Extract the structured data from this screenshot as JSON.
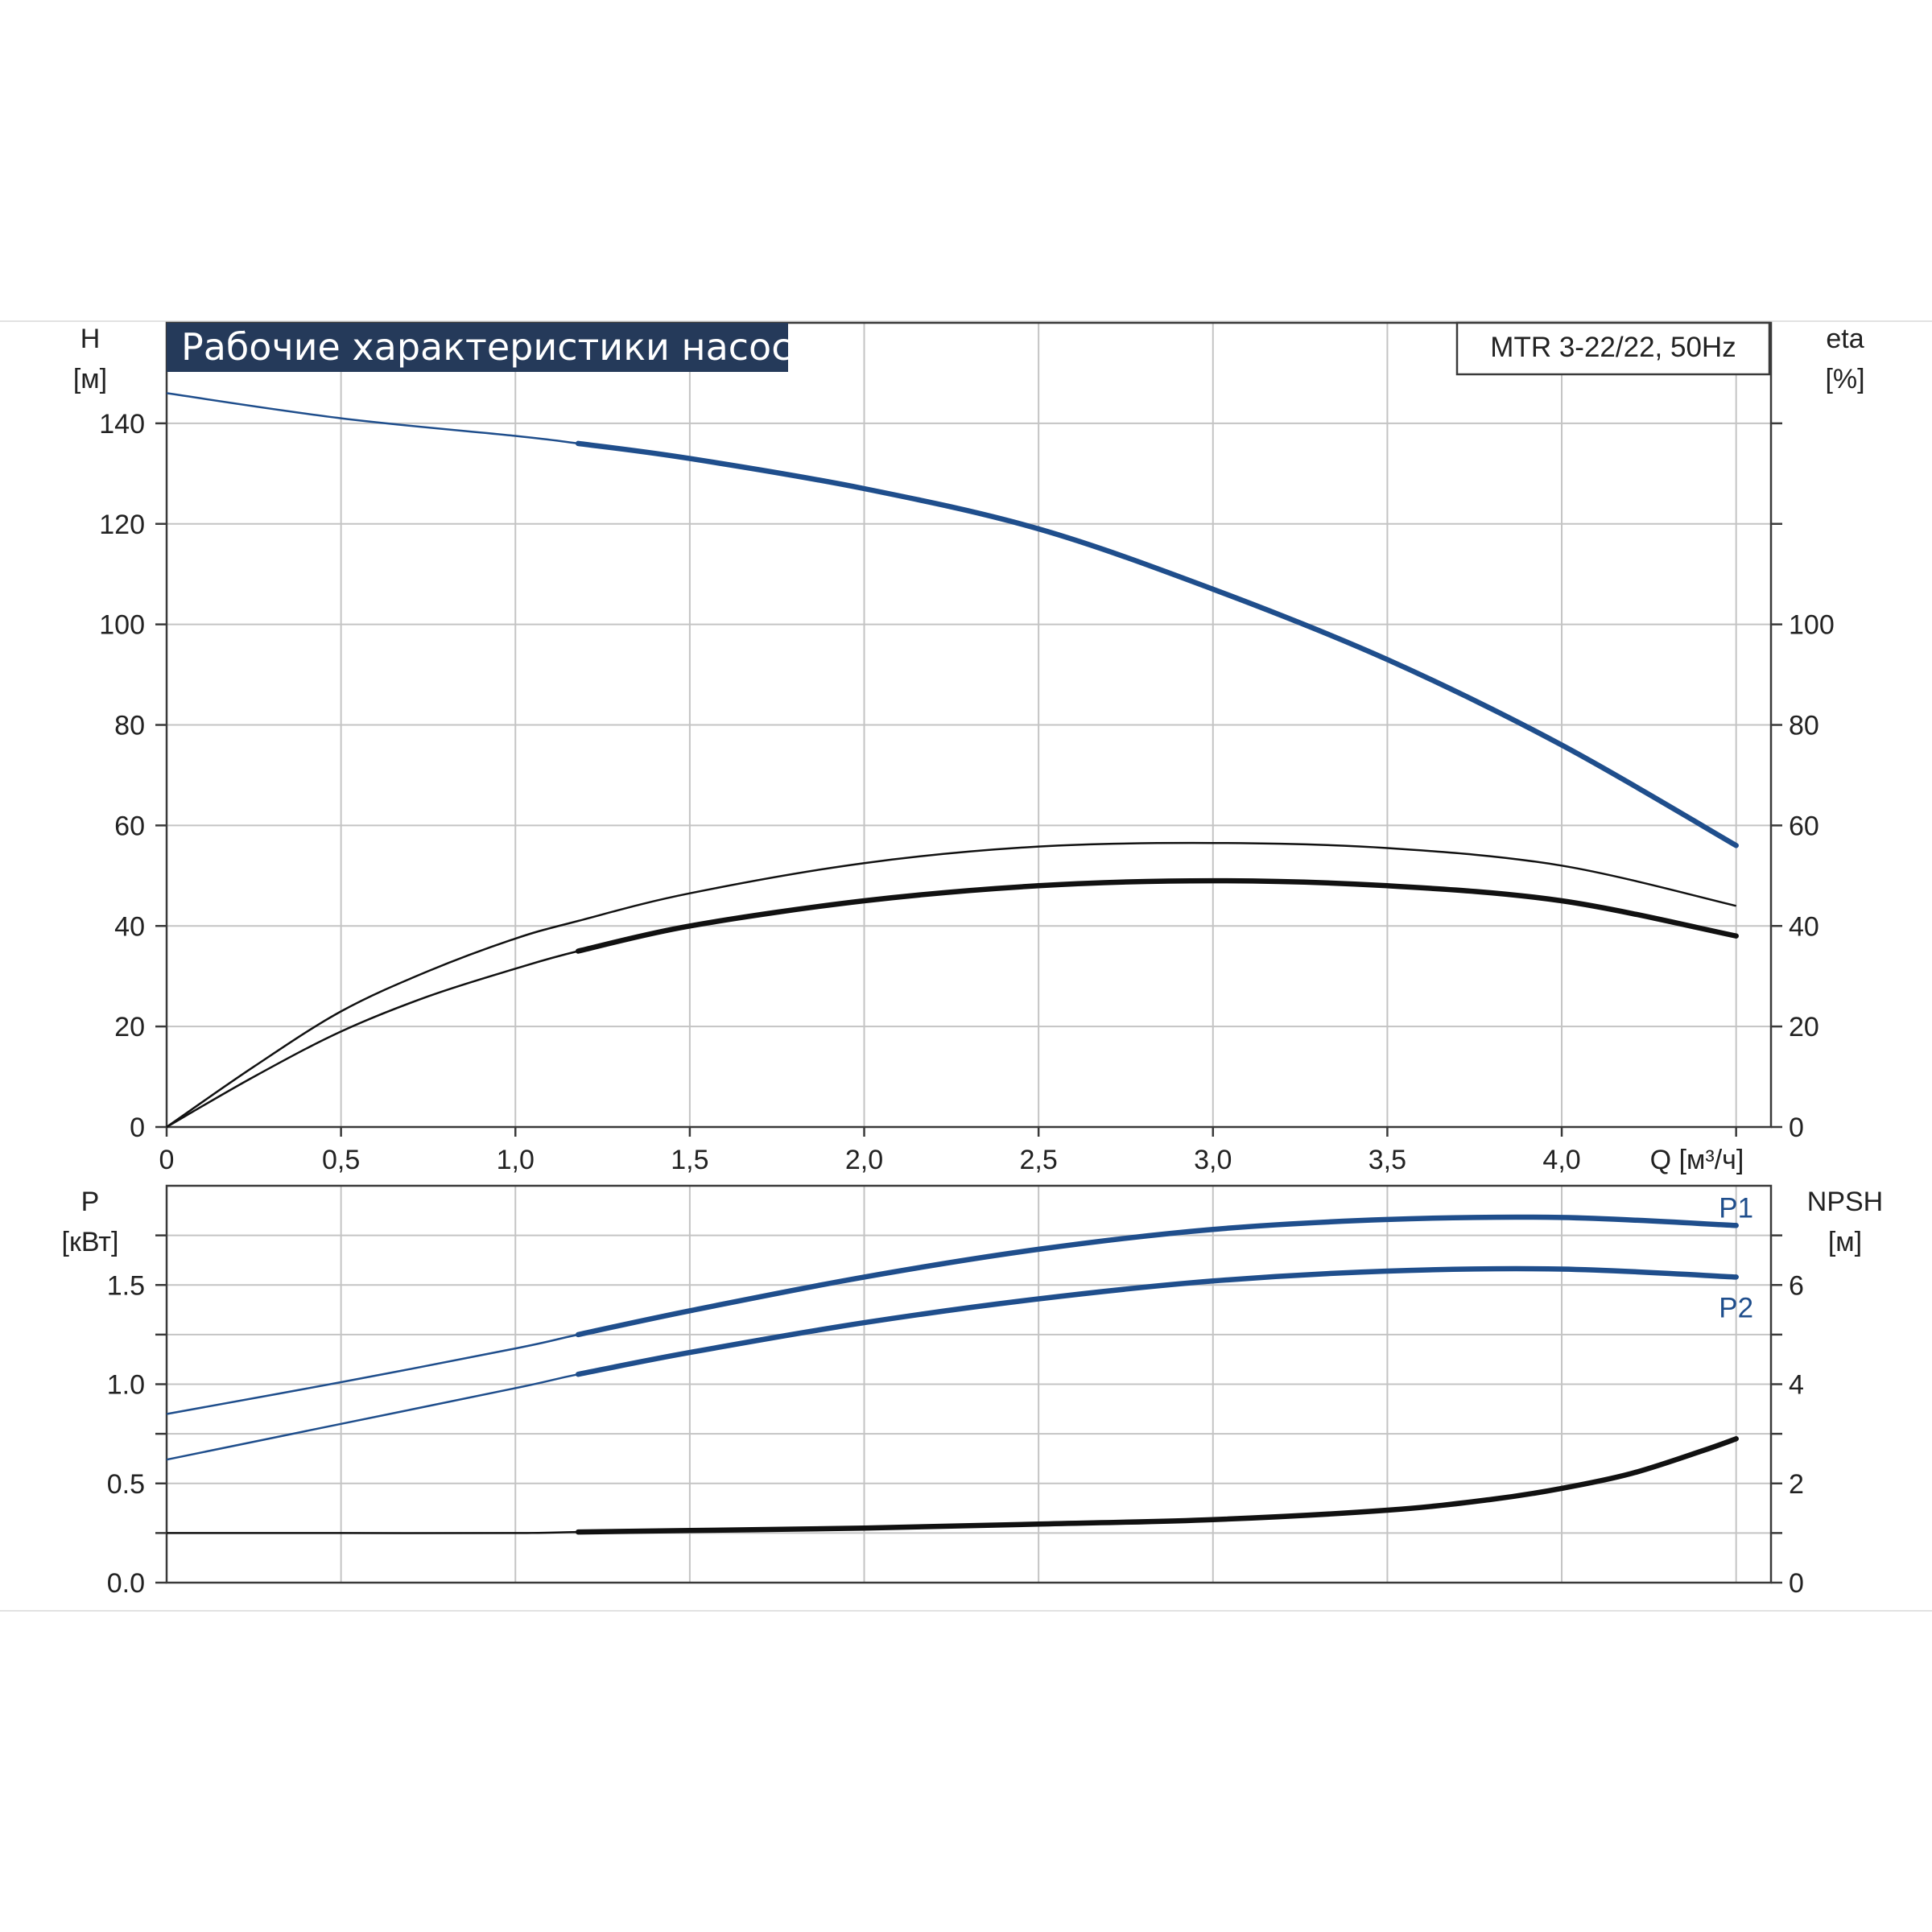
{
  "chart_data": [
    {
      "type": "line",
      "title": "Рабочие характеристики насоса",
      "model": "MTR 3-22/22, 50Hz",
      "xlabel": "Q [м³/ч]",
      "xlim": [
        0,
        4.6
      ],
      "x_ticks": [
        "0",
        "0,5",
        "1,0",
        "1,5",
        "2,0",
        "2,5",
        "3,0",
        "3,5",
        "4,0"
      ],
      "ylabel_left": [
        "H",
        "[м]"
      ],
      "ylim_left": [
        0,
        160
      ],
      "y_ticks_left": [
        "0",
        "20",
        "40",
        "60",
        "80",
        "100",
        "120",
        "140"
      ],
      "ylabel_right": [
        "eta",
        "[%]"
      ],
      "ylim_right": [
        0,
        160
      ],
      "y_ticks_right": [
        "0",
        "20",
        "40",
        "60",
        "80",
        "100"
      ],
      "grid": true,
      "series": [
        {
          "axis": "left",
          "color": "#1f4e8c",
          "work_from": 1.18,
          "x": [
            0,
            0.5,
            1.0,
            1.18,
            1.5,
            2.0,
            2.5,
            3.0,
            3.5,
            4.0,
            4.5
          ],
          "y": [
            146,
            141,
            137.5,
            136,
            133,
            127,
            119,
            107,
            93,
            76,
            56
          ]
        },
        {
          "axis": "right",
          "color": "#111111",
          "work_from": 99,
          "x": [
            0,
            0.25,
            0.5,
            0.75,
            1.0,
            1.18,
            1.5,
            2.0,
            2.5,
            3.0,
            3.5,
            4.0,
            4.5
          ],
          "y": [
            0,
            12,
            23,
            31,
            37.5,
            41,
            46.5,
            52.5,
            55.8,
            56.5,
            55.5,
            52,
            44
          ]
        },
        {
          "axis": "right",
          "color": "#111111",
          "work_from": 1.18,
          "x": [
            0,
            0.25,
            0.5,
            0.75,
            1.0,
            1.18,
            1.5,
            2.0,
            2.5,
            3.0,
            3.5,
            4.0,
            4.5
          ],
          "y": [
            0,
            10,
            19,
            26,
            31.5,
            35,
            40,
            45,
            48,
            49,
            48,
            45,
            38
          ]
        }
      ]
    },
    {
      "type": "line",
      "xlim": [
        0,
        4.6
      ],
      "ylabel_left": [
        "P",
        "[кВт]"
      ],
      "ylim_left": [
        0,
        2.0
      ],
      "y_ticks_left": [
        "0.0",
        "0.5",
        "1.0",
        "1.5"
      ],
      "ylabel_right": [
        "NPSH",
        "[м]"
      ],
      "ylim_right": [
        0,
        8
      ],
      "y_ticks_right": [
        "0",
        "2",
        "4",
        "6"
      ],
      "grid": true,
      "series": [
        {
          "name": "P1",
          "axis": "left",
          "color": "#1f4e8c",
          "work_from": 1.18,
          "x": [
            0,
            0.5,
            1.0,
            1.18,
            1.5,
            2.0,
            2.5,
            3.0,
            3.5,
            4.0,
            4.5
          ],
          "y": [
            0.85,
            1.01,
            1.18,
            1.25,
            1.37,
            1.54,
            1.68,
            1.78,
            1.83,
            1.84,
            1.8
          ]
        },
        {
          "name": "P2",
          "axis": "left",
          "color": "#1f4e8c",
          "work_from": 1.18,
          "x": [
            0,
            0.5,
            1.0,
            1.18,
            1.5,
            2.0,
            2.5,
            3.0,
            3.5,
            4.0,
            4.5
          ],
          "y": [
            0.62,
            0.8,
            0.98,
            1.05,
            1.16,
            1.31,
            1.43,
            1.52,
            1.57,
            1.58,
            1.54
          ]
        },
        {
          "axis": "right",
          "color": "#111111",
          "work_from": 1.18,
          "x": [
            0,
            0.5,
            1.0,
            1.18,
            1.5,
            2.0,
            2.5,
            3.0,
            3.5,
            3.8,
            4.0,
            4.2,
            4.4,
            4.5
          ],
          "y": [
            1.0,
            1.0,
            1.0,
            1.02,
            1.05,
            1.1,
            1.18,
            1.27,
            1.46,
            1.68,
            1.9,
            2.2,
            2.65,
            2.9
          ]
        }
      ]
    }
  ]
}
